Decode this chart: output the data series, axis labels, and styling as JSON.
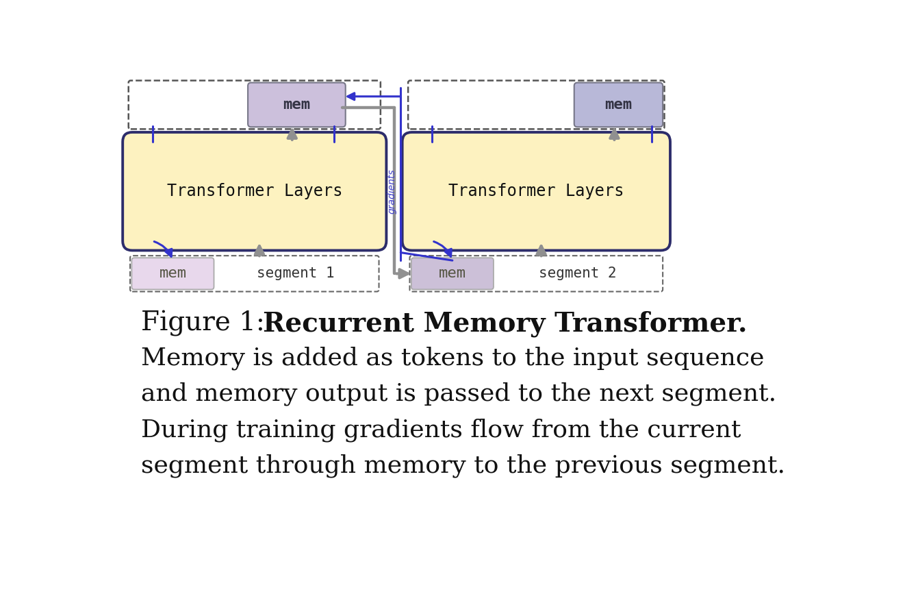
{
  "bg_color": "#ffffff",
  "transformer_fill": "#fdf2c0",
  "transformer_edge": "#2d2d6b",
  "mem_top_left_fill": "#ccc0dc",
  "mem_top_right_fill": "#b8b8d8",
  "mem_bottom_left_fill": "#e8d8ec",
  "mem_bottom_right_fill": "#ccc0d8",
  "blue_color": "#3333cc",
  "arrow_gray": "#909090",
  "gradients_label_color": "#4444cc",
  "title_plain": "Figure 1:  ",
  "title_bold": "Recurrent Memory Transformer.",
  "body_text_lines": [
    "Memory is added as tokens to the input sequence",
    "and memory output is passed to the next segment.",
    "During training gradients flow from the current",
    "segment through memory to the previous segment."
  ],
  "font_size_title": 28,
  "font_size_body": 26,
  "font_size_box": 17,
  "font_size_mem": 16,
  "font_size_seg": 15
}
